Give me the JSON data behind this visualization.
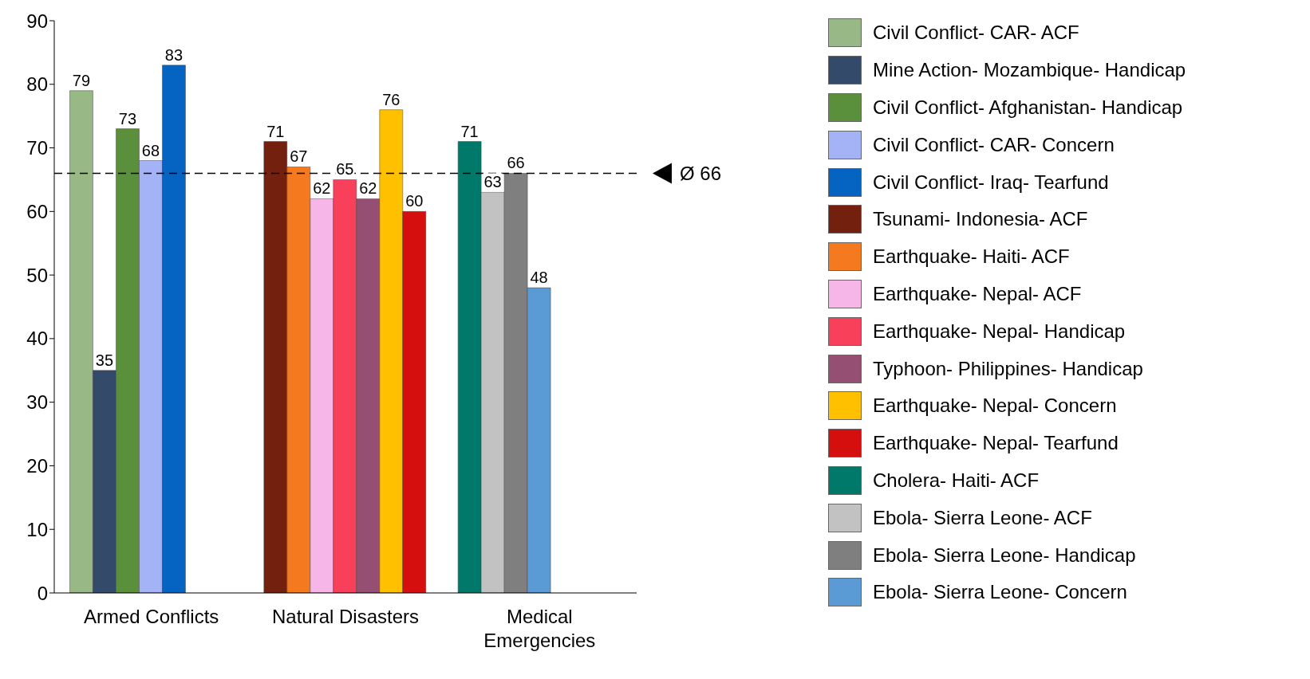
{
  "chart_data": {
    "type": "bar",
    "categories": [
      "Armed Conflicts",
      "Natural Disasters",
      "Medical Emergencies"
    ],
    "series": [
      {
        "name": "Civil Conflict- CAR- ACF",
        "color": "#98b886",
        "values": [
          79,
          null,
          null
        ]
      },
      {
        "name": "Mine Action- Mozambique- Handicap",
        "color": "#344a6b",
        "values": [
          35,
          null,
          null
        ]
      },
      {
        "name": "Civil Conflict- Afghanistan- Handicap",
        "color": "#5a8f3c",
        "values": [
          73,
          null,
          null
        ]
      },
      {
        "name": "Civil Conflict- CAR- Concern",
        "color": "#a3b3f5",
        "values": [
          68,
          null,
          null
        ]
      },
      {
        "name": "Civil Conflict- Iraq- Tearfund",
        "color": "#0563c1",
        "values": [
          83,
          null,
          null
        ]
      },
      {
        "name": "Tsunami- Indonesia- ACF",
        "color": "#74200f",
        "values": [
          null,
          71,
          null
        ]
      },
      {
        "name": "Earthquake- Haiti- ACF",
        "color": "#f5791f",
        "values": [
          null,
          67,
          null
        ]
      },
      {
        "name": "Earthquake- Nepal- ACF",
        "color": "#f6b6e8",
        "values": [
          null,
          62,
          null
        ]
      },
      {
        "name": "Earthquake- Nepal- Handicap",
        "color": "#f8405a",
        "values": [
          null,
          65,
          null
        ]
      },
      {
        "name": "Typhoon- Philippines- Handicap",
        "color": "#954f72",
        "values": [
          null,
          62,
          null
        ]
      },
      {
        "name": "Earthquake- Nepal- Concern",
        "color": "#ffc000",
        "values": [
          null,
          76,
          null
        ]
      },
      {
        "name": "Earthquake- Nepal- Tearfund",
        "color": "#d50e0e",
        "values": [
          null,
          60,
          null
        ]
      },
      {
        "name": "Cholera- Haiti- ACF",
        "color": "#00796b",
        "values": [
          null,
          null,
          71
        ]
      },
      {
        "name": "Ebola- Sierra Leone- ACF",
        "color": "#c2c2c2",
        "values": [
          null,
          null,
          63
        ]
      },
      {
        "name": "Ebola- Sierra Leone- Handicap",
        "color": "#7f7f7f",
        "values": [
          null,
          null,
          66
        ]
      },
      {
        "name": "Ebola- Sierra Leone- Concern",
        "color": "#5b9bd5",
        "values": [
          null,
          null,
          48
        ]
      }
    ],
    "ylim": [
      0,
      90
    ],
    "yticks": [
      0,
      10,
      20,
      30,
      40,
      50,
      60,
      70,
      80,
      90
    ],
    "grid": false,
    "legend": "right",
    "data_labels": true,
    "ref_lines": [
      {
        "axis": "y",
        "value": 66,
        "label": "Ø 66",
        "line_style": "dashed"
      }
    ]
  }
}
